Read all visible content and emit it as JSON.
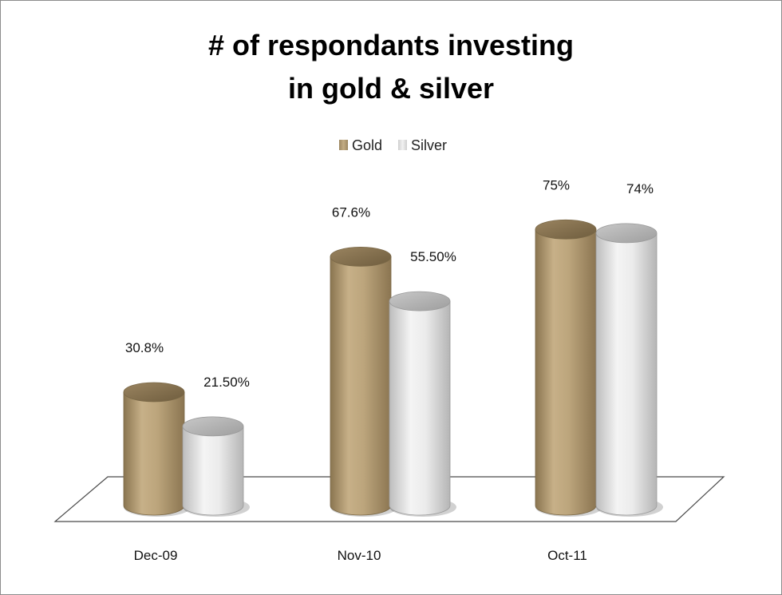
{
  "chart_data": {
    "type": "bar",
    "title": [
      "# of respondants investing",
      "in gold & silver"
    ],
    "categories": [
      "Dec-09",
      "Nov-10",
      "Oct-11"
    ],
    "series": [
      {
        "name": "Gold",
        "values": [
          30.8,
          67.6,
          75
        ],
        "labels": [
          "30.8%",
          "67.6%",
          "75%"
        ],
        "color": "#b9a37a"
      },
      {
        "name": "Silver",
        "values": [
          21.5,
          55.5,
          74
        ],
        "labels": [
          "21.50%",
          "55.50%",
          "74%"
        ],
        "color": "#e0e0e0"
      }
    ],
    "ylim": [
      0,
      100
    ],
    "legend": "top-center",
    "grid": false,
    "style": "3d-cylinder"
  }
}
